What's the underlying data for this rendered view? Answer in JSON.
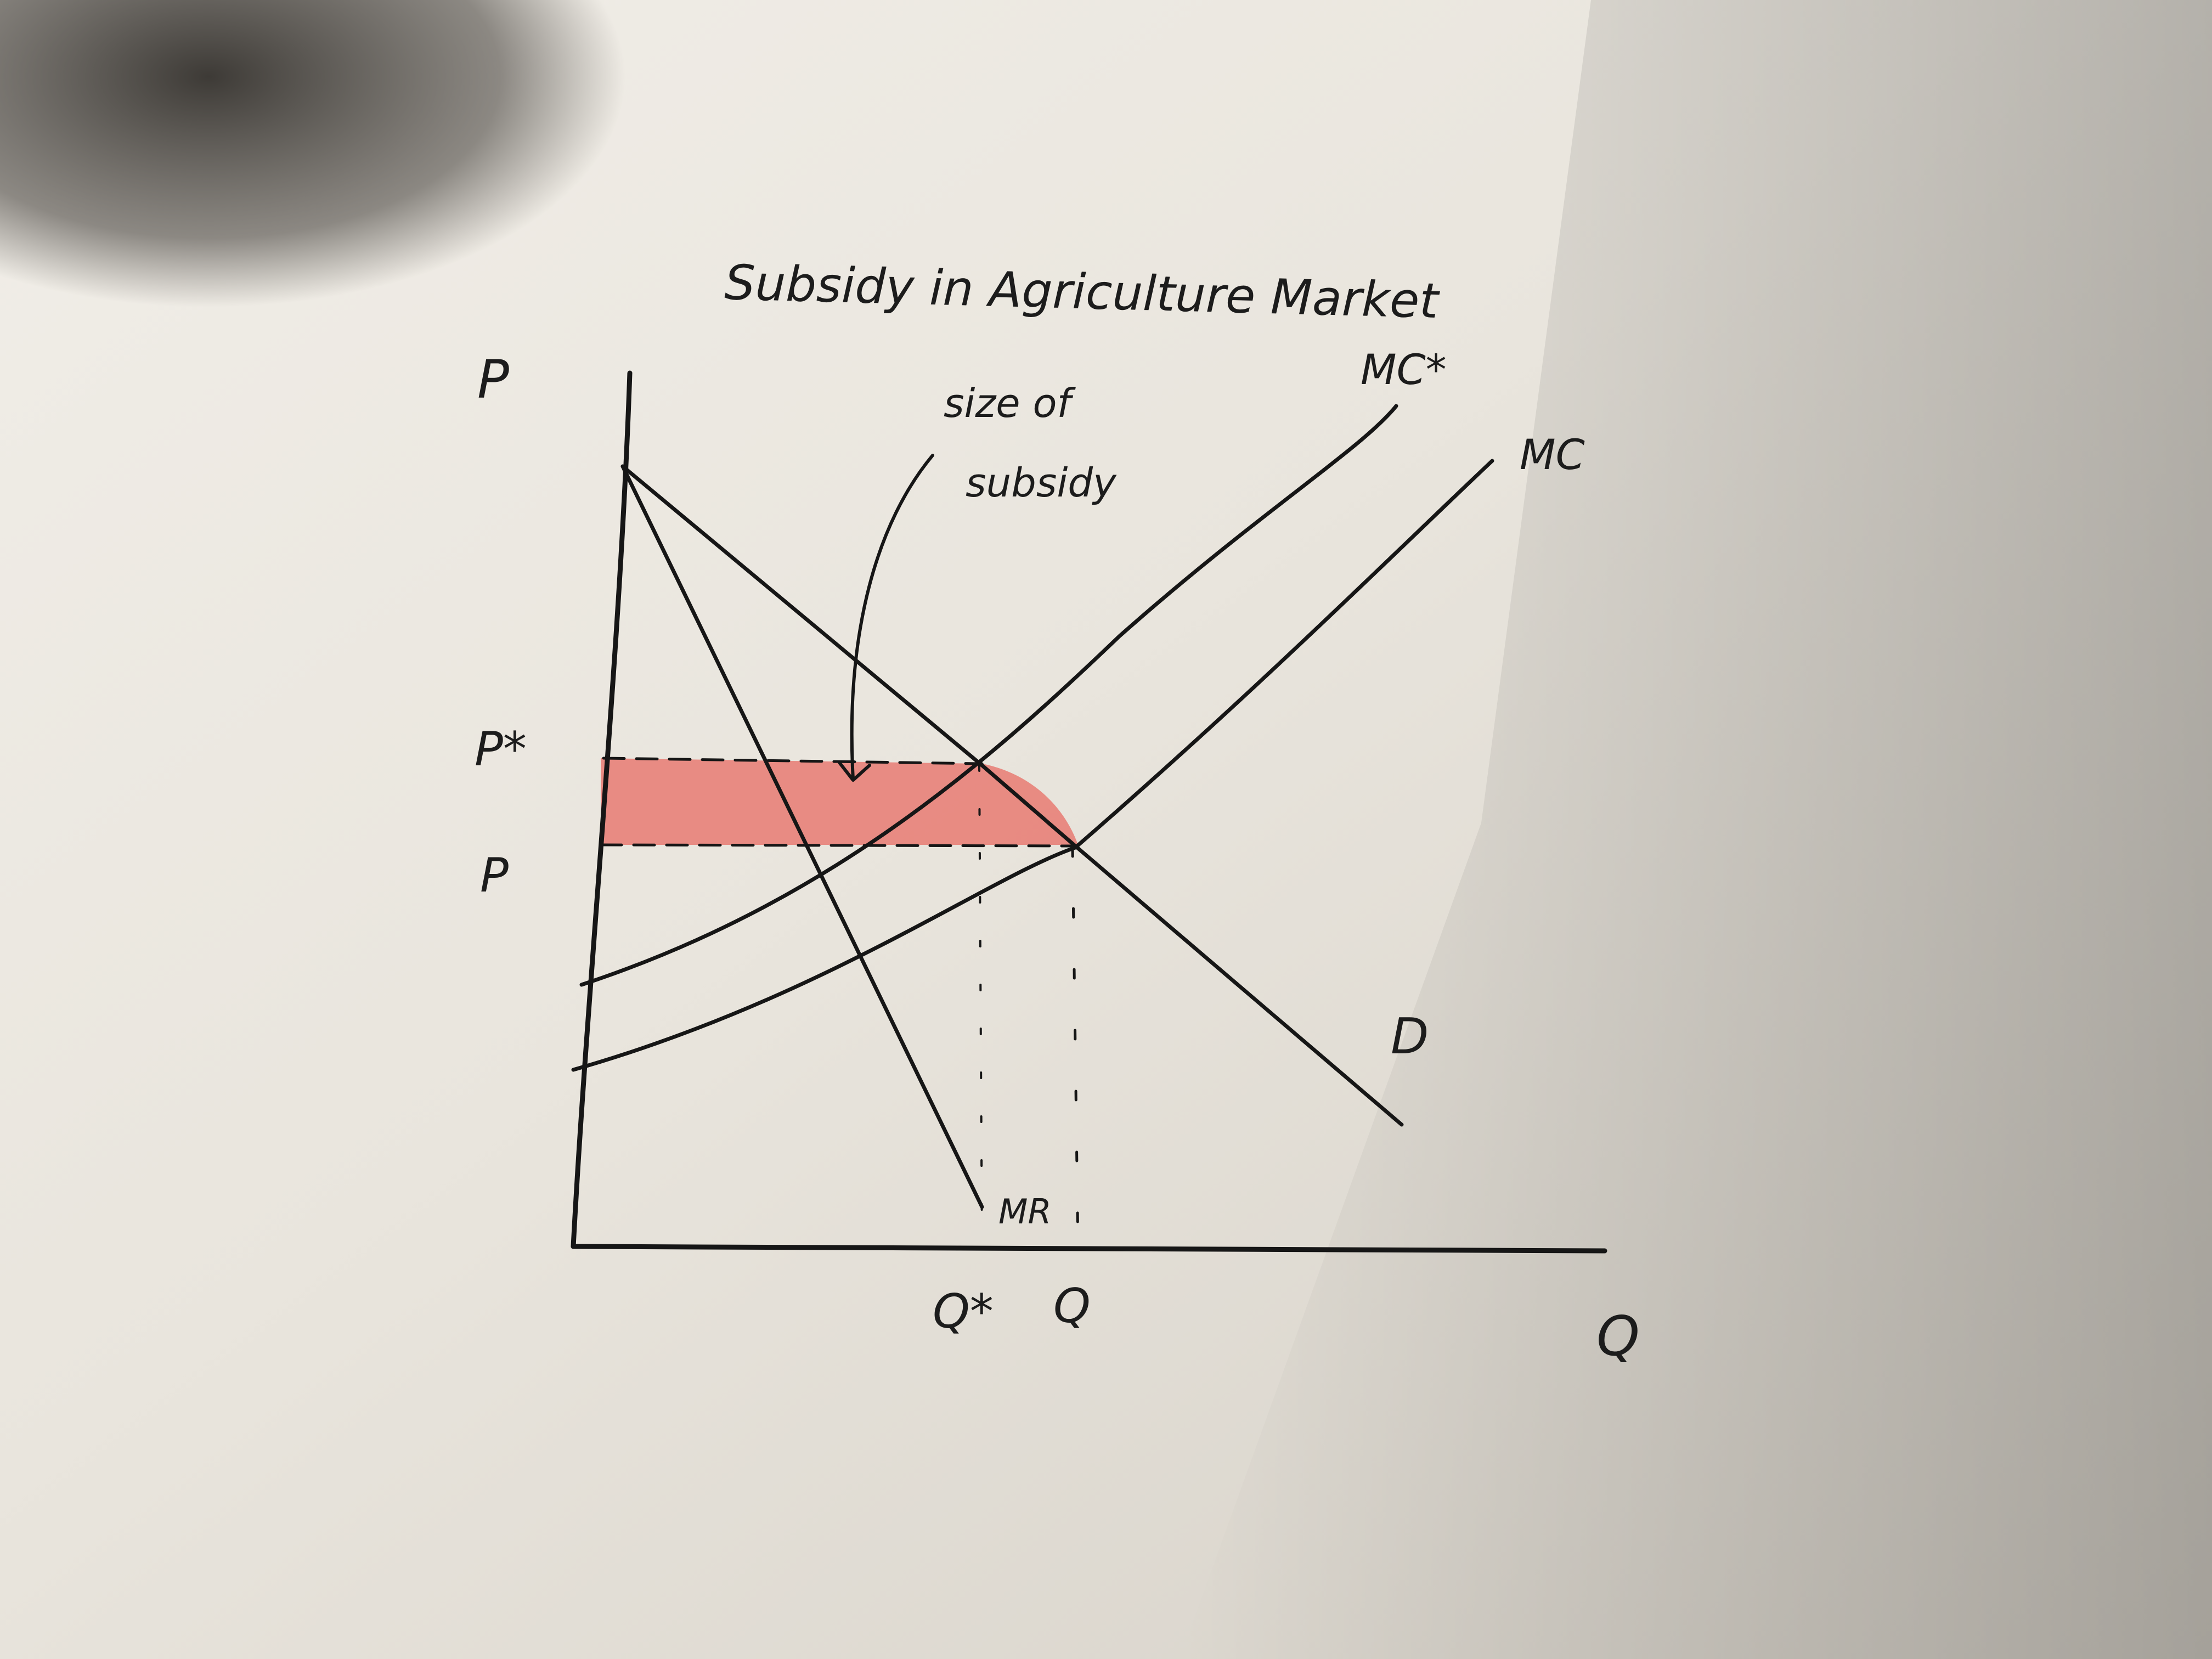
{
  "diagram": {
    "title": "Subsidy in Agriculture Market",
    "annotation": {
      "line1": "size of",
      "line2": "subsidy"
    },
    "axes": {
      "y_label": "P",
      "x_label": "Q"
    },
    "curves": {
      "mc_star": "MC*",
      "mc": "MC",
      "demand": "D",
      "mr": "MR"
    },
    "prices": {
      "p_star": "P*",
      "p": "P"
    },
    "quantities": {
      "q_star": "Q*",
      "q": "Q"
    },
    "colors": {
      "paper": "#e6e2da",
      "ink": "#161616",
      "highlight": "#e8685f",
      "shadow": "#3b3834"
    }
  }
}
